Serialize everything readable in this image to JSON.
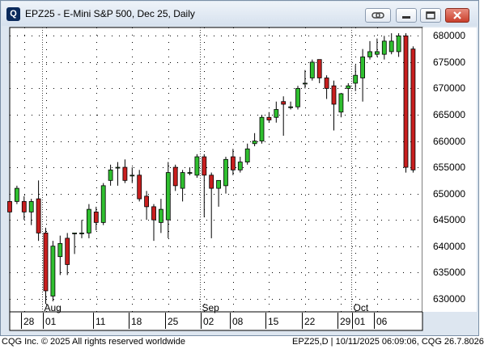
{
  "window": {
    "title": "EPZ25 - E-Mini S&P 500, Dec 25, Daily",
    "icon": "cqg-logo-icon"
  },
  "footer": {
    "left": "CQG Inc. © 2025 All rights reserved worldwide",
    "right": "EPZ25,D | 10/11/2025 06:09:06, CQG 26.7.8026"
  },
  "colors": {
    "up": "#2fbf2f",
    "down": "#c81e1e",
    "grid": "#000000",
    "plot_bg": "#ffffff"
  },
  "chart_data": {
    "type": "candlestick",
    "title": "",
    "y_ticks": [
      630000,
      635000,
      640000,
      645000,
      650000,
      655000,
      660000,
      665000,
      670000,
      675000,
      680000
    ],
    "ylim": [
      627500,
      681600
    ],
    "y_label_position": "right",
    "grid": true,
    "month_labels": [
      "Aug",
      "Sep",
      "Oct"
    ],
    "day_labels": [
      "28",
      "01",
      "11",
      "18",
      "25",
      "02",
      "08",
      "15",
      "22",
      "29",
      "01",
      "06"
    ],
    "candles": [
      {
        "date": "Jul 24",
        "open": 648500,
        "high": 650500,
        "low": 645000,
        "close": 646500
      },
      {
        "date": "Jul 25",
        "open": 648500,
        "high": 651500,
        "low": 648000,
        "close": 651000
      },
      {
        "date": "Jul 28",
        "open": 648500,
        "high": 649500,
        "low": 645000,
        "close": 646500
      },
      {
        "date": "Jul 29",
        "open": 646500,
        "high": 649000,
        "low": 644000,
        "close": 648500
      },
      {
        "date": "Jul 30",
        "open": 649000,
        "high": 652500,
        "low": 641000,
        "close": 642500
      },
      {
        "date": "Jul 31",
        "open": 642500,
        "high": 643500,
        "low": 629000,
        "close": 631500
      },
      {
        "date": "Aug 01",
        "open": 630500,
        "high": 641000,
        "low": 629500,
        "close": 640000
      },
      {
        "date": "Aug 04",
        "open": 638000,
        "high": 642000,
        "low": 634500,
        "close": 640500
      },
      {
        "date": "Aug 05",
        "open": 641500,
        "high": 642500,
        "low": 634500,
        "close": 636500
      },
      {
        "date": "Aug 06",
        "open": 642500,
        "high": 642500,
        "low": 638500,
        "close": 642500
      },
      {
        "date": "Aug 07",
        "open": 642500,
        "high": 645000,
        "low": 641500,
        "close": 642500
      },
      {
        "date": "Aug 08",
        "open": 642500,
        "high": 648000,
        "low": 641500,
        "close": 647000
      },
      {
        "date": "Aug 11",
        "open": 646500,
        "high": 647500,
        "low": 643000,
        "close": 644500
      },
      {
        "date": "Aug 12",
        "open": 644500,
        "high": 652000,
        "low": 644000,
        "close": 651500
      },
      {
        "date": "Aug 13",
        "open": 652500,
        "high": 655500,
        "low": 651500,
        "close": 654500
      },
      {
        "date": "Aug 14",
        "open": 655000,
        "high": 656000,
        "low": 651500,
        "close": 655000
      },
      {
        "date": "Aug 15",
        "open": 655000,
        "high": 656500,
        "low": 652000,
        "close": 652500
      },
      {
        "date": "Aug 18",
        "open": 653500,
        "high": 655000,
        "low": 652000,
        "close": 653500
      },
      {
        "date": "Aug 19",
        "open": 653500,
        "high": 654500,
        "low": 648500,
        "close": 649000
      },
      {
        "date": "Aug 20",
        "open": 649500,
        "high": 650500,
        "low": 645000,
        "close": 647500
      },
      {
        "date": "Aug 21",
        "open": 647500,
        "high": 648000,
        "low": 641000,
        "close": 645000
      },
      {
        "date": "Aug 22",
        "open": 644500,
        "high": 649000,
        "low": 642500,
        "close": 647000
      },
      {
        "date": "Aug 25",
        "open": 645000,
        "high": 656000,
        "low": 641500,
        "close": 654000
      },
      {
        "date": "Aug 26",
        "open": 655000,
        "high": 655500,
        "low": 650500,
        "close": 651500
      },
      {
        "date": "Aug 27",
        "open": 651000,
        "high": 654500,
        "low": 648500,
        "close": 654000
      },
      {
        "date": "Aug 28",
        "open": 654000,
        "high": 655000,
        "low": 653500,
        "close": 654000
      },
      {
        "date": "Aug 29",
        "open": 653500,
        "high": 657500,
        "low": 653000,
        "close": 657000
      },
      {
        "date": "Sep 02",
        "open": 657000,
        "high": 657500,
        "low": 645500,
        "close": 653500
      },
      {
        "date": "Sep 03",
        "open": 653500,
        "high": 654000,
        "low": 641500,
        "close": 651000
      },
      {
        "date": "Sep 04",
        "open": 651000,
        "high": 652500,
        "low": 647500,
        "close": 652500
      },
      {
        "date": "Sep 05",
        "open": 651500,
        "high": 657000,
        "low": 650000,
        "close": 656500
      },
      {
        "date": "Sep 08",
        "open": 657000,
        "high": 658500,
        "low": 653500,
        "close": 654500
      },
      {
        "date": "Sep 09",
        "open": 654500,
        "high": 657000,
        "low": 654000,
        "close": 656000
      },
      {
        "date": "Sep 10",
        "open": 656000,
        "high": 659500,
        "low": 655500,
        "close": 658500
      },
      {
        "date": "Sep 11",
        "open": 659500,
        "high": 661500,
        "low": 659000,
        "close": 660000
      },
      {
        "date": "Sep 12",
        "open": 660000,
        "high": 665000,
        "low": 659500,
        "close": 664500
      },
      {
        "date": "Sep 15",
        "open": 664500,
        "high": 665500,
        "low": 663500,
        "close": 664000
      },
      {
        "date": "Sep 16",
        "open": 664500,
        "high": 667500,
        "low": 663500,
        "close": 666000
      },
      {
        "date": "Sep 17",
        "open": 667500,
        "high": 668500,
        "low": 661000,
        "close": 667000
      },
      {
        "date": "Sep 18",
        "open": 666500,
        "high": 667500,
        "low": 666000,
        "close": 666500
      },
      {
        "date": "Sep 19",
        "open": 666500,
        "high": 670500,
        "low": 666000,
        "close": 670000
      },
      {
        "date": "Sep 22",
        "open": 671000,
        "high": 673500,
        "low": 670000,
        "close": 671000
      },
      {
        "date": "Sep 23",
        "open": 672000,
        "high": 675500,
        "low": 671500,
        "close": 675000
      },
      {
        "date": "Sep 24",
        "open": 675500,
        "high": 675500,
        "low": 671000,
        "close": 672000
      },
      {
        "date": "Sep 25",
        "open": 672000,
        "high": 672500,
        "low": 668000,
        "close": 670000
      },
      {
        "date": "Sep 26",
        "open": 670500,
        "high": 671500,
        "low": 662000,
        "close": 667000
      },
      {
        "date": "Sep 29",
        "open": 665500,
        "high": 669000,
        "low": 664500,
        "close": 669000
      },
      {
        "date": "Sep 30",
        "open": 670000,
        "high": 671000,
        "low": 667500,
        "close": 670500
      },
      {
        "date": "Oct 01",
        "open": 671000,
        "high": 674500,
        "low": 669500,
        "close": 672500
      },
      {
        "date": "Oct 02",
        "open": 672000,
        "high": 677500,
        "low": 667500,
        "close": 676000
      },
      {
        "date": "Oct 03",
        "open": 676000,
        "high": 679000,
        "low": 675500,
        "close": 677000
      },
      {
        "date": "Oct 06",
        "open": 676500,
        "high": 679500,
        "low": 676000,
        "close": 677000
      },
      {
        "date": "Oct 07",
        "open": 676500,
        "high": 680000,
        "low": 675500,
        "close": 679000
      },
      {
        "date": "Oct 08",
        "open": 677000,
        "high": 680500,
        "low": 676500,
        "close": 679000
      },
      {
        "date": "Oct 09",
        "open": 677000,
        "high": 680500,
        "low": 676000,
        "close": 680000
      },
      {
        "date": "Oct 10",
        "open": 680000,
        "high": 680500,
        "low": 654000,
        "close": 655000
      },
      {
        "date": "Oct 13",
        "open": 677500,
        "high": 678000,
        "low": 654000,
        "close": 654500
      }
    ]
  }
}
